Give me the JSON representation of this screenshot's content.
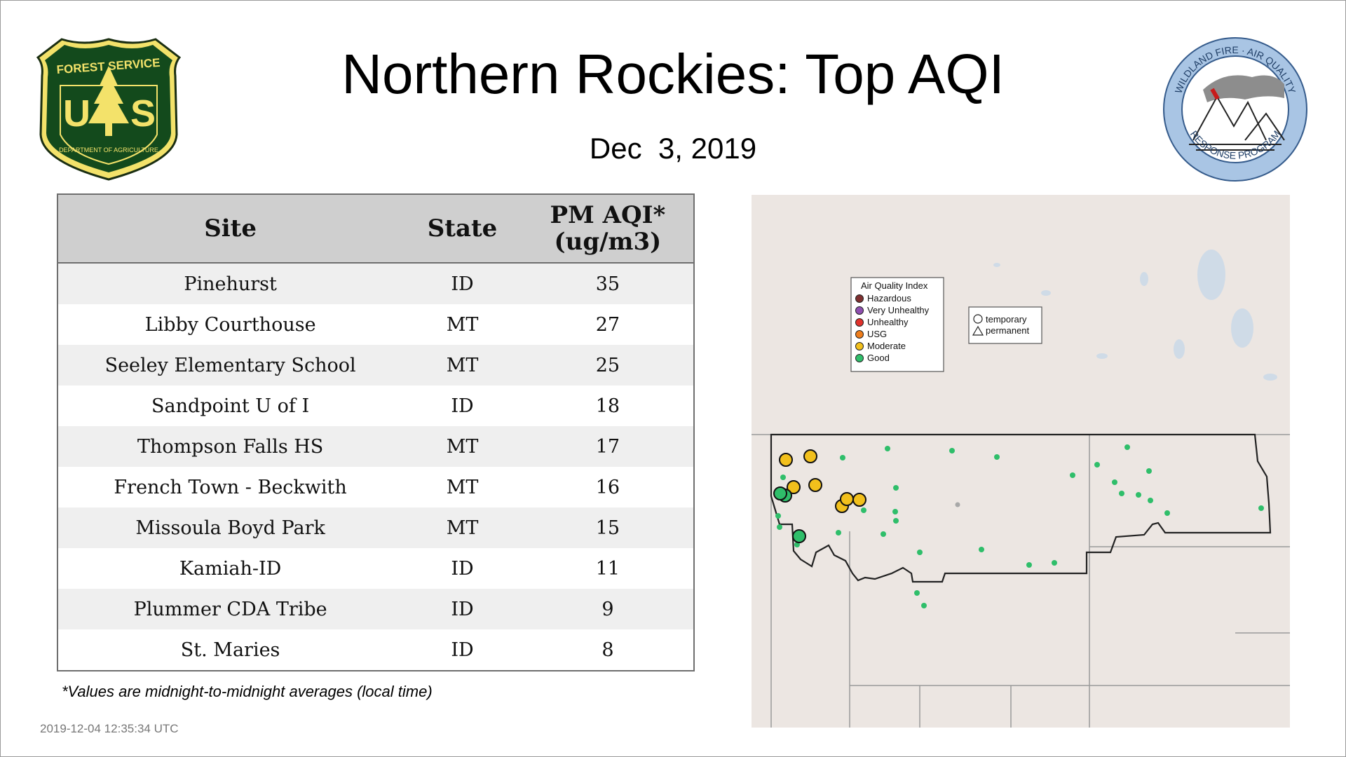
{
  "title": "Northern Rockies: Top AQI",
  "date": "Dec  3, 2019",
  "logos": {
    "forest_service": {
      "top_text": "FOREST SERVICE",
      "letters": "US",
      "bottom_text": "DEPARTMENT OF AGRICULTURE"
    },
    "wildland": {
      "top_text": "WILDLAND FIRE · AIR QUALITY",
      "bottom_text": "RESPONSE PROGRAM"
    }
  },
  "table": {
    "headers": {
      "site": "Site",
      "state": "State",
      "aqi_line1": "PM AQI*",
      "aqi_line2": "(ug/m3)"
    },
    "rows": [
      {
        "site": "Pinehurst",
        "state": "ID",
        "aqi": "35"
      },
      {
        "site": "Libby Courthouse",
        "state": "MT",
        "aqi": "27"
      },
      {
        "site": "Seeley Elementary School",
        "state": "MT",
        "aqi": "25"
      },
      {
        "site": "Sandpoint U of I",
        "state": "ID",
        "aqi": "18"
      },
      {
        "site": "Thompson Falls HS",
        "state": "MT",
        "aqi": "17"
      },
      {
        "site": "French Town - Beckwith",
        "state": "MT",
        "aqi": "16"
      },
      {
        "site": "Missoula Boyd Park",
        "state": "MT",
        "aqi": "15"
      },
      {
        "site": "Kamiah-ID",
        "state": "ID",
        "aqi": "11"
      },
      {
        "site": "Plummer CDA Tribe",
        "state": "ID",
        "aqi": "9"
      },
      {
        "site": "St. Maries",
        "state": "ID",
        "aqi": "8"
      }
    ]
  },
  "footnote": "*Values are midnight-to-midnight averages (local time)",
  "timestamp": "2019-12-04 12:35:34 UTC",
  "map": {
    "legend": {
      "title": "Air Quality Index",
      "items": [
        {
          "label": "Hazardous",
          "color": "#7e2f2f"
        },
        {
          "label": "Very Unhealthy",
          "color": "#8f4fb0"
        },
        {
          "label": "Unhealthy",
          "color": "#e0312b"
        },
        {
          "label": "USG",
          "color": "#ee7d1b"
        },
        {
          "label": "Moderate",
          "color": "#f2c01c"
        },
        {
          "label": "Good",
          "color": "#2fbe6a"
        }
      ]
    },
    "type_legend": {
      "items": [
        {
          "label": "temporary"
        },
        {
          "label": "permanent"
        }
      ]
    },
    "colors": {
      "land": "#ece6e2",
      "water": "#cfdbe7",
      "border": "#222222",
      "state_line": "#999999"
    }
  }
}
